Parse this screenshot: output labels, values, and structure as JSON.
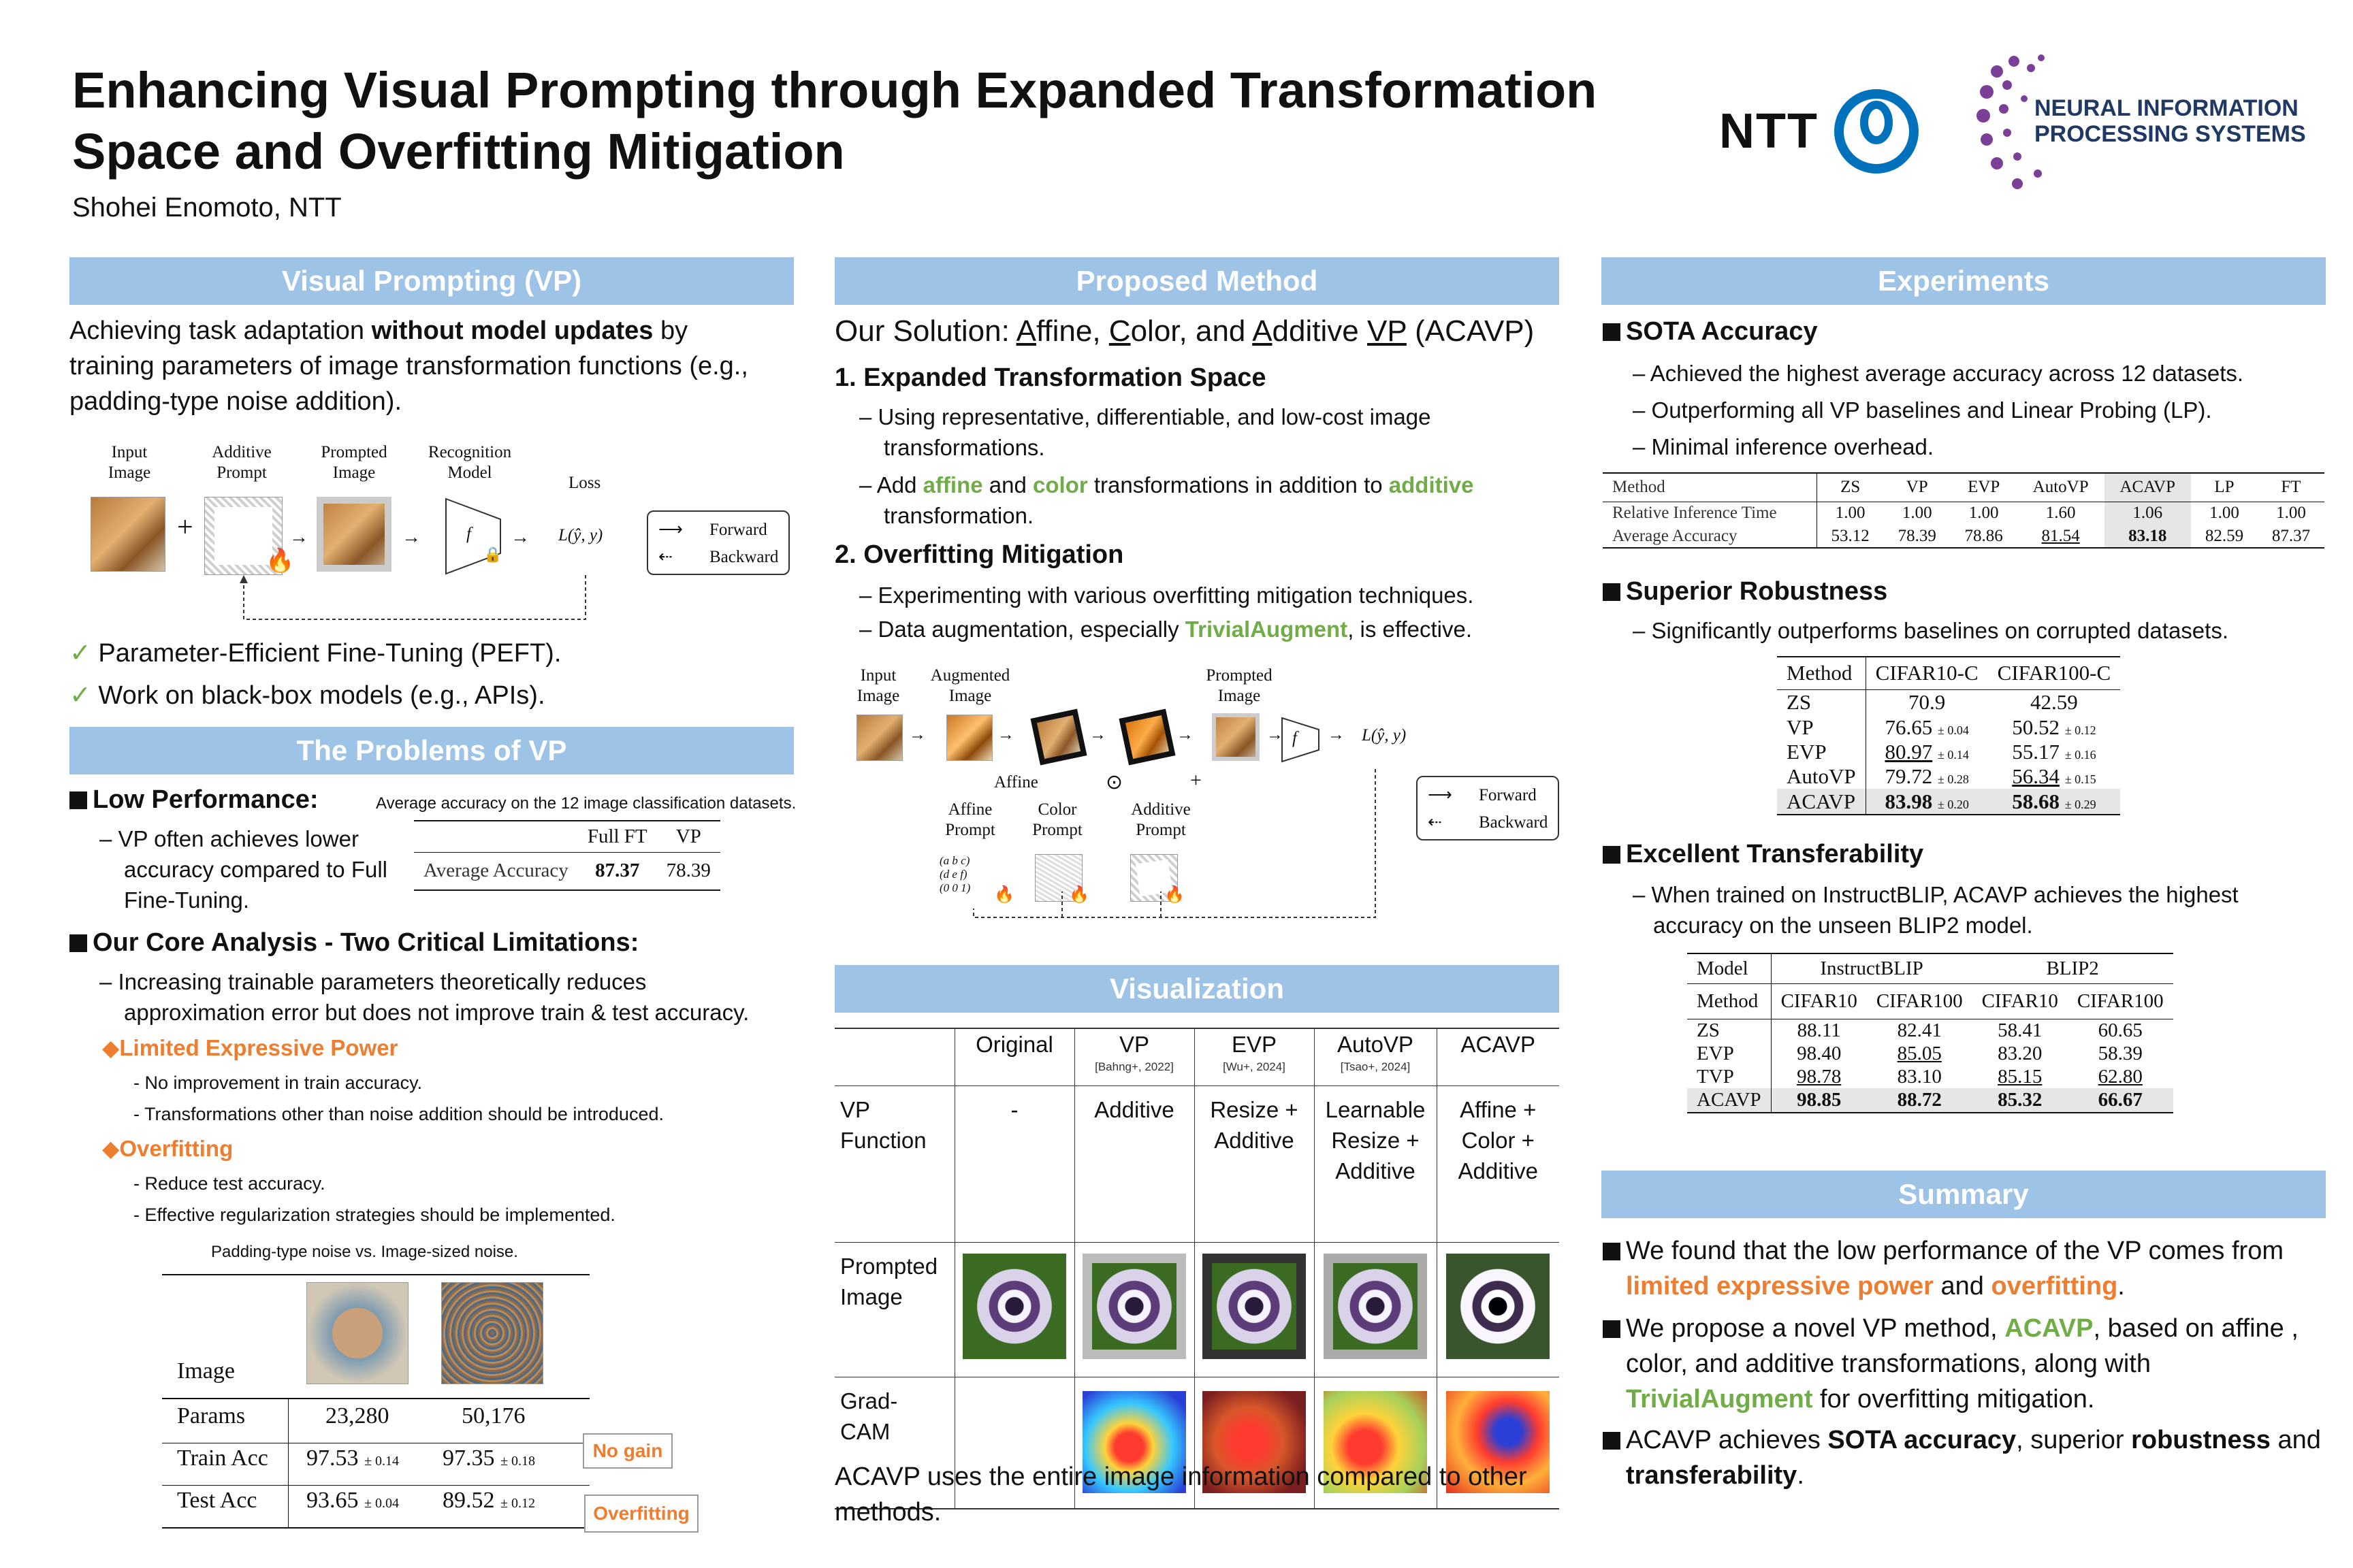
{
  "header": {
    "title_line1": "Enhancing Visual Prompting through Expanded Transformation",
    "title_line2": "Space and Overfitting Mitigation",
    "author": "Shohei Enomoto, NTT",
    "ntt_logo_text": "NTT",
    "neurips_line1": "NEURAL INFORMATION",
    "neurips_line2": "PROCESSING SYSTEMS"
  },
  "vp": {
    "banner": "Visual Prompting (VP)",
    "intro_a": "Achieving task adaptation ",
    "intro_bold": "without model updates",
    "intro_b": " by",
    "intro_line2": "training parameters of image transformation functions (e.g.,",
    "intro_line3": "padding-type noise addition).",
    "fig": {
      "input": "Input",
      "image": "Image",
      "additive": "Additive",
      "prompt": "Prompt",
      "prompted": "Prompted",
      "recognition": "Recognition",
      "model": "Model",
      "loss": "Loss",
      "loss_expr": "L(ŷ, y)",
      "f": "f",
      "forward": "Forward",
      "backward": "Backward",
      "plus": "+"
    },
    "check1": "Parameter-Efficient Fine-Tuning (PEFT).",
    "check2": "Work on black-box models (e.g., APIs)."
  },
  "problems": {
    "banner": "The Problems of VP",
    "low_perf": "Low Performance:",
    "table_caption": "Average accuracy on the 12 image classification datasets.",
    "low_perf_l1": "– VP often achieves lower",
    "low_perf_l2": "accuracy compared to Full",
    "low_perf_l3": "Fine-Tuning.",
    "acc_table": {
      "headers": [
        "",
        "Full FT",
        "VP"
      ],
      "row_label": "Average Accuracy",
      "full_ft": "87.37",
      "vp": "78.39"
    },
    "core": "Our Core Analysis - Two Critical Limitations:",
    "core_l1": "– Increasing trainable parameters theoretically reduces",
    "core_l2": "approximation error but does not improve train & test accuracy.",
    "limited": "Limited Expressive Power",
    "limited_1": "-  No improvement in train accuracy.",
    "limited_2": "-  Transformations other than noise addition should be introduced.",
    "overfit": "Overfitting",
    "overfit_1": "-  Reduce test accuracy.",
    "overfit_2": "-  Effective regularization strategies should be implemented.",
    "noise_caption": "Padding-type noise vs. Image-sized noise.",
    "noise_table": {
      "image_label": "Image",
      "rows": [
        {
          "label": "Params",
          "a": "23,280",
          "a_pm": "",
          "b": "50,176",
          "b_pm": ""
        },
        {
          "label": "Train Acc",
          "a": "97.53",
          "a_pm": "± 0.14",
          "b": "97.35",
          "b_pm": "± 0.18"
        },
        {
          "label": "Test Acc",
          "a": "93.65",
          "a_pm": "± 0.04",
          "b": "89.52",
          "b_pm": "± 0.12"
        }
      ]
    },
    "callout_nogain": "No gain",
    "callout_overfit": "Overfitting"
  },
  "method": {
    "banner": "Proposed Method",
    "solution_prefix": "Our Solution: ",
    "A": "A",
    "ffine": "ffine, ",
    "C": "C",
    "olor": "olor, and ",
    "Ad": "A",
    "dditive": "dditive ",
    "VP": "VP",
    "paren": " (ACAVP)",
    "s1": "1.  Expanded Transformation Space",
    "s1_a": "– Using representative, differentiable, and low-cost image",
    "s1_b": "transformations.",
    "s1_c_a": "– Add ",
    "affine": "affine",
    "s1_c_b": " and ",
    "color": "color",
    "s1_c_c": " transformations in addition to ",
    "additive": "additive",
    "s1_d": "transformation.",
    "s2": "2.  Overfitting Mitigation",
    "s2_a": "– Experimenting with various overfitting mitigation techniques.",
    "s2_b_a": "– Data augmentation, especially ",
    "trivial": "TrivialAugment",
    "s2_b_b": ", is effective.",
    "fig": {
      "input": "Input",
      "image": "Image",
      "augmented": "Augmented",
      "prompted": "Prompted",
      "affine": "Affine",
      "affine_prompt_a": "Affine",
      "prompt": "Prompt",
      "color_a": "Color",
      "additive_a": "Additive",
      "odot": "⊙",
      "plus": "+",
      "loss": "L(ŷ, y)",
      "f": "f",
      "forward": "Forward",
      "backward": "Backward"
    }
  },
  "viz": {
    "banner": "Visualization",
    "cols": [
      "Original",
      "VP",
      "EVP",
      "AutoVP",
      "ACAVP"
    ],
    "cites": [
      "",
      "[Bahng+, 2022]",
      "[Wu+, 2024]",
      "[Tsao+, 2024]",
      ""
    ],
    "row1_label_a": "VP",
    "row1_label_b": "Function",
    "row1": [
      "-",
      "Additive",
      "Resize +|Additive",
      "Learnable|Resize +|Additive",
      "Affine +|Color +|Additive"
    ],
    "row2_label_a": "Prompted",
    "row2_label_b": "Image",
    "row3_label_a": "Grad-",
    "row3_label_b": "CAM",
    "caption_l1": "ACAVP uses the entire image information compared to other",
    "caption_l2": "methods."
  },
  "experiments": {
    "banner": "Experiments",
    "sota": "SOTA Accuracy",
    "sota_1": "– Achieved the highest average accuracy across 12 datasets.",
    "sota_2": "– Outperforming all VP baselines and Linear Probing (LP).",
    "sota_3": "– Minimal inference overhead.",
    "t1": {
      "headers": [
        "Method",
        "ZS",
        "VP",
        "EVP",
        "AutoVP",
        "ACAVP",
        "LP",
        "FT"
      ],
      "rows": [
        [
          "Relative Inference Time",
          "1.00",
          "1.00",
          "1.00",
          "1.60",
          "1.06",
          "1.00",
          "1.00"
        ],
        [
          "Average Accuracy",
          "53.12",
          "78.39",
          "78.86",
          "81.54",
          "83.18",
          "82.59",
          "87.37"
        ]
      ]
    },
    "robust": "Superior Robustness",
    "robust_1": "– Significantly outperforms baselines on corrupted datasets.",
    "t2": {
      "headers": [
        "Method",
        "CIFAR10-C",
        "CIFAR100-C"
      ],
      "rows": [
        [
          "ZS",
          "70.9",
          "",
          "42.59",
          ""
        ],
        [
          "VP",
          "76.65",
          "± 0.04",
          "50.52",
          "± 0.12"
        ],
        [
          "EVP",
          "80.97",
          "± 0.14",
          "55.17",
          "± 0.16"
        ],
        [
          "AutoVP",
          "79.72",
          "± 0.28",
          "56.34",
          "± 0.15"
        ],
        [
          "ACAVP",
          "83.98",
          "± 0.20",
          "58.68",
          "± 0.29"
        ]
      ]
    },
    "transfer": "Excellent Transferability",
    "transfer_1": "– When trained on InstructBLIP, ACAVP achieves the highest",
    "transfer_2": "accuracy on the unseen BLIP2 model.",
    "t3": {
      "model": "Model",
      "instructblip": "InstructBLIP",
      "blip2": "BLIP2",
      "method": "Method",
      "sub": [
        "CIFAR10",
        "CIFAR100",
        "CIFAR10",
        "CIFAR100"
      ],
      "rows": [
        [
          "ZS",
          "88.11",
          "82.41",
          "58.41",
          "60.65"
        ],
        [
          "EVP",
          "98.40",
          "85.05",
          "83.20",
          "58.39"
        ],
        [
          "TVP",
          "98.78",
          "83.10",
          "85.15",
          "62.80"
        ],
        [
          "ACAVP",
          "98.85",
          "88.72",
          "85.32",
          "66.67"
        ]
      ]
    }
  },
  "summary": {
    "banner": "Summary",
    "b1_a": "We found that the low performance of the VP comes from",
    "b1_o1": "limited expressive power",
    "b1_b": " and ",
    "b1_o2": "overfitting",
    "b1_c": ".",
    "b2_a": "We propose a novel VP method, ",
    "b2_g": "ACAVP",
    "b2_b": ", based on affine ,",
    "b2_l2": "color, and additive transformations, along with",
    "b2_g2": "TrivialAugment",
    "b2_c": " for overfitting mitigation.",
    "b3_a": "ACAVP achieves ",
    "b3_b1": "SOTA accuracy",
    "b3_b": ", superior ",
    "b3_b2": "robustness",
    "b3_c": " and",
    "b3_b3": "transferability",
    "b3_d": "."
  }
}
